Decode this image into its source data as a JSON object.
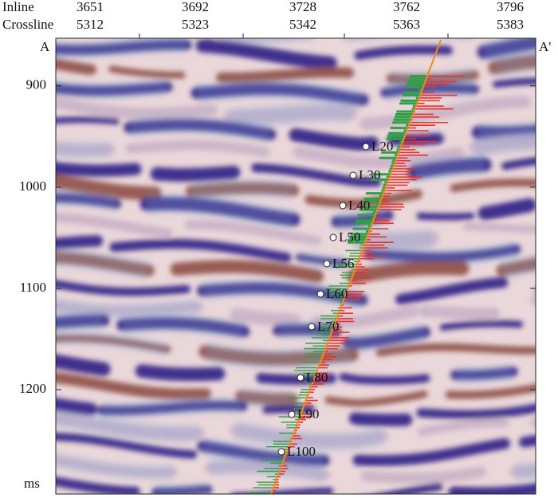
{
  "labels": {
    "inline": "Inline",
    "crossline": "Crossline",
    "left_end": "A",
    "right_end": "A'",
    "time_unit": "ms"
  },
  "top_axis": [
    {
      "inline": 3651,
      "crossline": 5312
    },
    {
      "inline": 3692,
      "crossline": 5323
    },
    {
      "inline": 3728,
      "crossline": 5342
    },
    {
      "inline": 3762,
      "crossline": 5363
    },
    {
      "inline": 3796,
      "crossline": 5383
    }
  ],
  "time_axis": {
    "ylim": [
      853,
      1303
    ],
    "yticks": [
      900,
      1000,
      1100,
      1200
    ]
  },
  "markers": [
    "L20",
    "L30",
    "L40",
    "L50",
    "L56",
    "L60",
    "L70",
    "L80",
    "L90",
    "L100"
  ]
}
